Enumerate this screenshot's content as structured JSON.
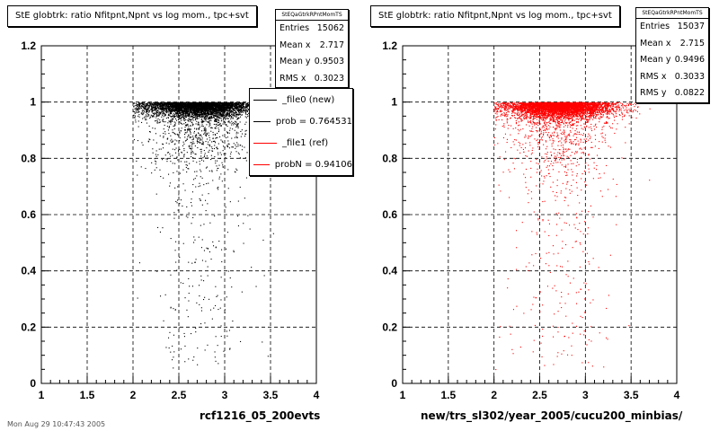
{
  "colors": {
    "ref": "#000000",
    "new": "#ff0000",
    "grid": "#000000"
  },
  "footer_text": "Mon Aug 29 10:47:43 2005",
  "chart_data": [
    {
      "type": "scatter",
      "title": "StE globtrk: ratio Nfitpnt,Npnt vs log mom., tpc+svt",
      "xlabel": "rcf1216_05_200evts",
      "xlim": [
        1,
        4
      ],
      "ylim": [
        0,
        1.2
      ],
      "xticks": [
        "1",
        "1.5",
        "2",
        "2.5",
        "3",
        "3.5",
        "4"
      ],
      "yticks": [
        "0",
        "0.2",
        "0.4",
        "0.6",
        "0.8",
        "1",
        "1.2"
      ],
      "grid": true,
      "color": "#000000",
      "points_description": "dense band at y≈0.93–1.0 for x≈2.0–3.5, sparse scatter down to y≈0.05",
      "stats": {
        "name": "StEQaGtrkRPntMomTS",
        "entries": "15062",
        "mean_x": "2.717",
        "mean_y": "0.9503",
        "rms_x": "0.3023"
      },
      "stats_labels": {
        "entries": "Entries",
        "mean_x": "Mean x",
        "mean_y": "Mean y",
        "rms_x": "RMS x"
      },
      "legend": [
        {
          "label": "_file0 (new)",
          "color": "#000000"
        },
        {
          "label": "prob = 0.764531",
          "color": "#000000"
        },
        {
          "label": "_file1 (ref)",
          "color": "#ff0000"
        },
        {
          "label": "probN = 0.94106",
          "color": "#ff0000"
        }
      ],
      "legend_position": "top-right"
    },
    {
      "type": "scatter",
      "title": "StE globtrk: ratio Nfitpnt,Npnt vs log mom., tpc+svt",
      "xlabel": "new/trs_sl302/year_2005/cucu200_minbias/",
      "xlim": [
        1,
        4
      ],
      "ylim": [
        0,
        1.2
      ],
      "xticks": [
        "1",
        "1.5",
        "2",
        "2.5",
        "3",
        "3.5",
        "4"
      ],
      "yticks": [
        "0",
        "0.2",
        "0.4",
        "0.6",
        "0.8",
        "1",
        "1.2"
      ],
      "grid": true,
      "color": "#ff0000",
      "points_description": "dense band at y≈0.93–1.0 for x≈2.0–3.5, sparse scatter down to y≈0.05",
      "stats": {
        "name": "StEQaGtrkRPntMomTS",
        "entries": "15037",
        "mean_x": "2.715",
        "mean_y": "0.9496",
        "rms_x": "0.3033",
        "rms_y": "0.0822"
      },
      "stats_labels": {
        "entries": "Entries",
        "mean_x": "Mean x",
        "mean_y": "Mean y",
        "rms_x": "RMS x",
        "rms_y": "RMS y"
      }
    }
  ]
}
